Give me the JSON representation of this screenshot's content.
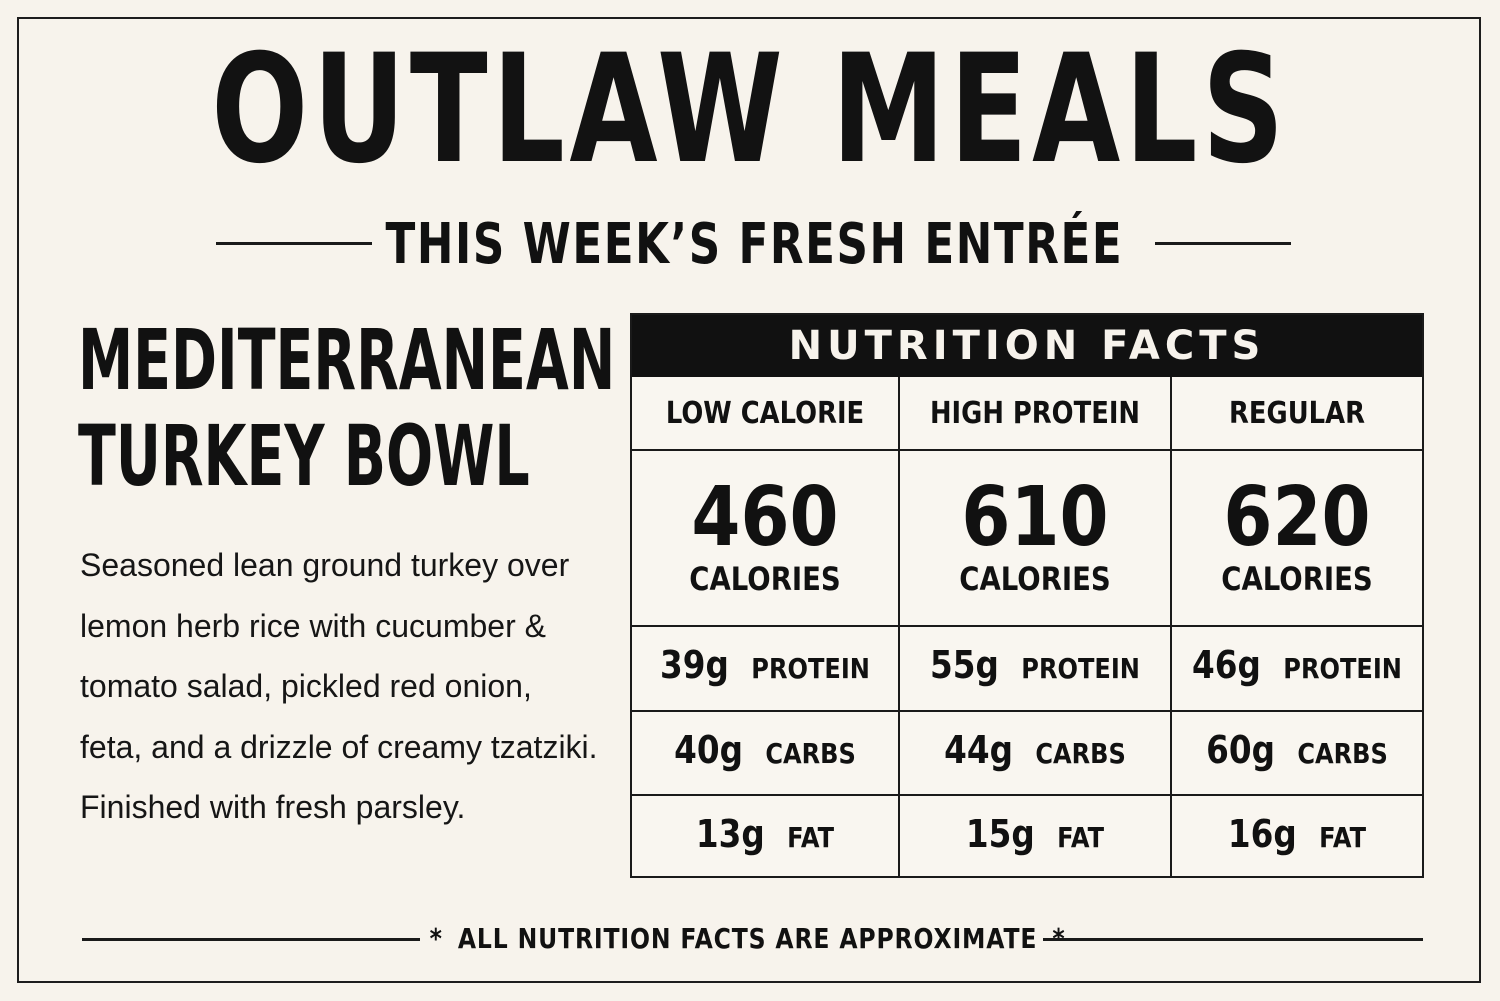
{
  "brand": {
    "title": "OUTLAW MEALS"
  },
  "header": {
    "subtitle": "THIS WEEK’S FRESH ENTRÉE"
  },
  "meal": {
    "name_line1": "MEDITERRANEAN",
    "name_line2": "TURKEY BOWL",
    "description": "Seasoned lean ground turkey over lemon herb rice with cucumber & tomato salad, pickled red onion, feta, and a drizzle of creamy tzatziki. Finished with fresh parsley."
  },
  "nutrition": {
    "title": "NUTRITION FACTS",
    "columns": [
      {
        "name": "LOW CALORIE",
        "calories": "460",
        "calories_label": "CALORIES",
        "protein": "39g",
        "protein_label": "PROTEIN",
        "carbs": "40g",
        "carbs_label": "CARBS",
        "fat": "13g",
        "fat_label": "FAT"
      },
      {
        "name": "HIGH PROTEIN",
        "calories": "610",
        "calories_label": "CALORIES",
        "protein": "55g",
        "protein_label": "PROTEIN",
        "carbs": "44g",
        "carbs_label": "CARBS",
        "fat": "15g",
        "fat_label": "FAT"
      },
      {
        "name": "REGULAR",
        "calories": "620",
        "calories_label": "CALORIES",
        "protein": "46g",
        "protein_label": "PROTEIN",
        "carbs": "60g",
        "carbs_label": "CARBS",
        "fat": "16g",
        "fat_label": "FAT"
      }
    ]
  },
  "footer": {
    "star": "*",
    "note": "ALL NUTRITION FACTS ARE APPROXIMATE"
  },
  "colors": {
    "background": "#f7f3ec",
    "ink": "#111111"
  }
}
